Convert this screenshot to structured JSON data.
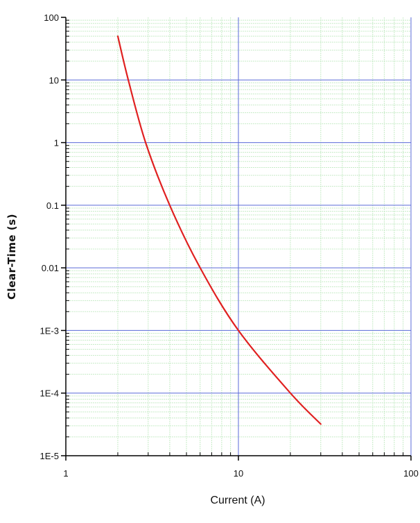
{
  "chart_data": {
    "type": "line",
    "title": "",
    "xlabel": "Current (A)",
    "ylabel": "Clear-Time (s)",
    "x_scale": "log",
    "y_scale": "log",
    "xlim": [
      1,
      100
    ],
    "ylim": [
      1e-05,
      100
    ],
    "x_ticks": [
      {
        "value": 1,
        "label": "1"
      },
      {
        "value": 10,
        "label": "10"
      },
      {
        "value": 100,
        "label": "100"
      }
    ],
    "y_ticks": [
      {
        "value": 100,
        "label": "100"
      },
      {
        "value": 10,
        "label": "10"
      },
      {
        "value": 1,
        "label": "1"
      },
      {
        "value": 0.1,
        "label": "0.1"
      },
      {
        "value": 0.01,
        "label": "0.01"
      },
      {
        "value": 0.001,
        "label": "1E-3"
      },
      {
        "value": 0.0001,
        "label": "1E-4"
      },
      {
        "value": 1e-05,
        "label": "1E-5"
      }
    ],
    "grid": true,
    "colors": {
      "major_grid": "#5a6ad8",
      "minor_grid": "#c8ecc8",
      "axis": "#000000",
      "series": "#e02020"
    },
    "series": [
      {
        "x": [
          2,
          2.3,
          2.9,
          4,
          6,
          10,
          20,
          30
        ],
        "y": [
          50,
          10,
          1,
          0.1,
          0.01,
          0.001,
          0.0001,
          3.2e-05
        ]
      }
    ]
  }
}
